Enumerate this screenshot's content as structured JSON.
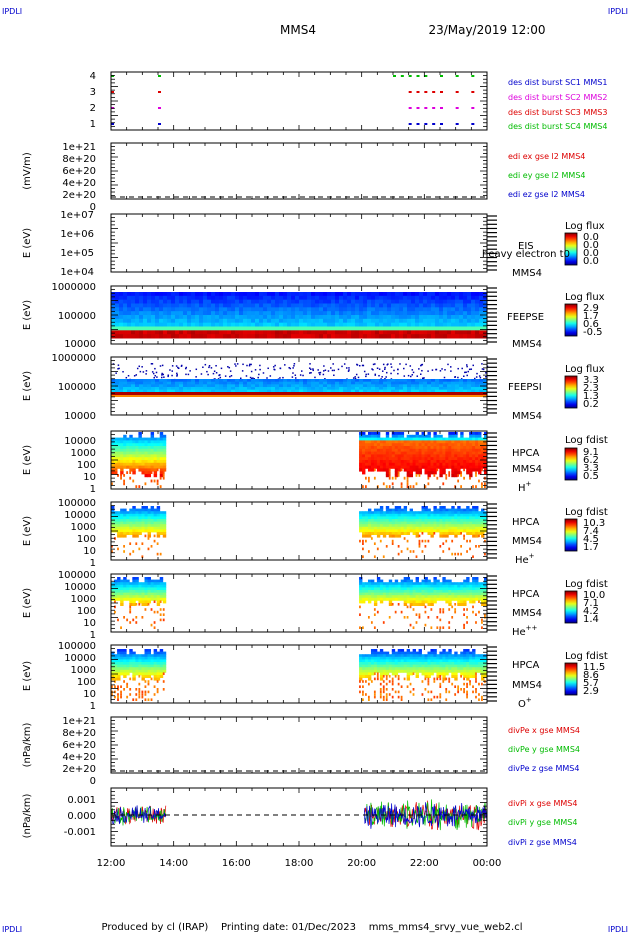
{
  "corner": {
    "tl": "IPDLI",
    "tr": "IPDLI",
    "bl": "IPDLI",
    "br": "IPDLI"
  },
  "header": {
    "spacecraft": "MMS4",
    "datetime": "23/May/2019 12:00"
  },
  "footer": {
    "text": "Produced by cl (IRAP)    Printing date: 01/Dec/2023    mms_mms4_srvy_vue_web2.cl"
  },
  "time_axis": {
    "ticks": [
      "12:00",
      "14:00",
      "16:00",
      "18:00",
      "20:00",
      "22:00",
      "00:00"
    ]
  },
  "colors": {
    "mms1": "#0000cc",
    "mms2": "#dd00dd",
    "mms3": "#dd0000",
    "mms4": "#00bb00",
    "red": "#dd0000",
    "green": "#00bb00",
    "blue": "#0000cc"
  },
  "panels": {
    "burst": {
      "ylabels": [
        "4",
        "3",
        "2",
        "1"
      ],
      "legend": [
        "des dist burst SC1 MMS1",
        "des dist burst SC2 MMS2",
        "des dist burst SC3 MMS3",
        "des dist burst SC4 MMS4"
      ]
    },
    "edi": {
      "ylabel": "(mV/m)",
      "ticks": [
        "1e+21",
        "8e+20",
        "6e+20",
        "4e+20",
        "2e+20",
        "0"
      ],
      "legend": [
        "edi ex gse l2 MMS4",
        "edi ey gse l2 MMS4",
        "edi ez gse l2 MMS4"
      ]
    },
    "eis": {
      "ylabel": "E (eV)",
      "ticks": [
        "1e+07",
        "1e+06",
        "1e+05",
        "1e+04"
      ],
      "inst": "EIS",
      "sc": "MMS4",
      "extra": "heavy electron t0",
      "cb_title": "Log flux",
      "cb_ticks": [
        "0.0",
        "0.0",
        "0.0",
        "0.0"
      ]
    },
    "feepse": {
      "ylabel": "E (eV)",
      "ticks": [
        "1000000",
        "100000",
        "10000"
      ],
      "inst": "FEEPSE",
      "sc": "MMS4",
      "cb_title": "Log flux",
      "cb_ticks": [
        "2.9",
        "1.7",
        "0.6",
        "-0.5"
      ]
    },
    "feepsi": {
      "ylabel": "E (eV)",
      "ticks": [
        "1000000",
        "100000",
        "10000"
      ],
      "inst": "FEEPSI",
      "sc": "MMS4",
      "cb_title": "Log flux",
      "cb_ticks": [
        "3.3",
        "2.3",
        "1.3",
        "0.2"
      ]
    },
    "hpca_h": {
      "ylabel": "E (eV)",
      "ticks": [
        "10000",
        "1000",
        "100",
        "10",
        "1"
      ],
      "inst": "HPCA",
      "sc": "MMS4",
      "species": "H",
      "sup": "+",
      "cb_title": "Log fdist",
      "cb_ticks": [
        "9.1",
        "6.2",
        "3.3",
        "0.5"
      ]
    },
    "hpca_he": {
      "ylabel": "E (eV)",
      "ticks": [
        "100000",
        "10000",
        "1000",
        "100",
        "10",
        "1"
      ],
      "inst": "HPCA",
      "sc": "MMS4",
      "species": "He",
      "sup": "+",
      "cb_title": "Log fdist",
      "cb_ticks": [
        "10.3",
        "7.4",
        "4.5",
        "1.7"
      ]
    },
    "hpca_hepp": {
      "ylabel": "E (eV)",
      "ticks": [
        "100000",
        "10000",
        "1000",
        "100",
        "10",
        "1"
      ],
      "inst": "HPCA",
      "sc": "MMS4",
      "species": "He",
      "sup": "++",
      "cb_title": "Log fdist",
      "cb_ticks": [
        "10.0",
        "7.1",
        "4.2",
        "1.4"
      ]
    },
    "hpca_o": {
      "ylabel": "E (eV)",
      "ticks": [
        "100000",
        "10000",
        "1000",
        "100",
        "10",
        "1"
      ],
      "inst": "HPCA",
      "sc": "MMS4",
      "species": "O",
      "sup": "+",
      "cb_title": "Log fdist",
      "cb_ticks": [
        "11.5",
        "8.6",
        "5.7",
        "2.9"
      ]
    },
    "divpe": {
      "ylabel": "(nPa/km)",
      "ticks": [
        "1e+21",
        "8e+20",
        "6e+20",
        "4e+20",
        "2e+20",
        "0"
      ],
      "legend": [
        "divPe x gse MMS4",
        "divPe y gse MMS4",
        "divPe z gse MMS4"
      ]
    },
    "divpi": {
      "ylabel": "(nPa/km)",
      "ticks": [
        "0.001",
        "0.000",
        "-0.001"
      ],
      "legend": [
        "divPi x gse MMS4",
        "divPi y gse MMS4",
        "divPi z gse MMS4"
      ]
    }
  },
  "chart_data": {
    "type": "heatmap",
    "x_range": [
      "12:00",
      "00:00"
    ],
    "hpca_data_intervals": [
      [
        "12:00",
        "13:45"
      ],
      [
        "19:55",
        "00:00"
      ]
    ],
    "divpi_data_intervals": [
      [
        "12:00",
        "13:45"
      ],
      [
        "20:05",
        "00:00"
      ]
    ],
    "burst_markers": {
      "sc1": [
        "12:00",
        "13:30",
        "21:30",
        "21:45",
        "22:00",
        "22:15",
        "22:30",
        "23:00",
        "23:30"
      ],
      "sc2": [
        "12:00",
        "13:30",
        "21:30",
        "21:45",
        "22:00",
        "22:15",
        "22:30",
        "23:00",
        "23:30"
      ],
      "sc3": [
        "12:00",
        "13:30",
        "21:30",
        "21:45",
        "22:00",
        "22:15",
        "22:30",
        "23:00",
        "23:30"
      ],
      "sc4": [
        "12:00",
        "13:30",
        "21:00",
        "21:15",
        "21:30",
        "21:45",
        "22:00",
        "22:30",
        "23:00",
        "23:30"
      ]
    },
    "divpi_range": [
      -0.0015,
      0.0015
    ]
  }
}
